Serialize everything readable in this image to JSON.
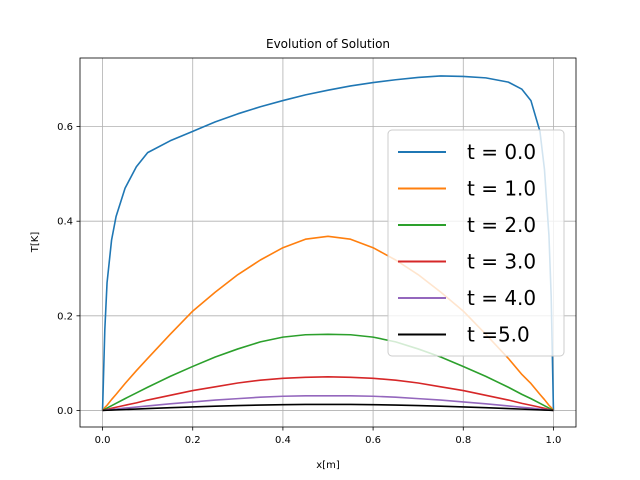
{
  "chart_data": {
    "type": "line",
    "title": "Evolution of Solution",
    "xlabel": "x[m]",
    "ylabel": "T[K]",
    "xlim": [
      -0.05,
      1.05
    ],
    "ylim": [
      -0.035,
      0.745
    ],
    "xticks": [
      0.0,
      0.2,
      0.4,
      0.6,
      0.8,
      1.0
    ],
    "xtick_labels": [
      "0.0",
      "0.2",
      "0.4",
      "0.6",
      "0.8",
      "1.0"
    ],
    "yticks": [
      0.0,
      0.2,
      0.4,
      0.6
    ],
    "ytick_labels": [
      "0.0",
      "0.2",
      "0.4",
      "0.6"
    ],
    "grid": true,
    "legend_position": "right",
    "x": [
      0.0,
      0.005,
      0.01,
      0.02,
      0.03,
      0.05,
      0.075,
      0.1,
      0.15,
      0.2,
      0.25,
      0.3,
      0.35,
      0.4,
      0.45,
      0.5,
      0.55,
      0.6,
      0.65,
      0.7,
      0.75,
      0.8,
      0.85,
      0.9,
      0.93,
      0.95,
      0.97,
      0.98,
      0.99,
      0.995,
      1.0
    ],
    "series": [
      {
        "name": "t = 0.0",
        "color": "#1f77b4",
        "values": [
          0.0,
          0.17,
          0.27,
          0.36,
          0.41,
          0.47,
          0.515,
          0.545,
          0.57,
          0.59,
          0.61,
          0.627,
          0.642,
          0.655,
          0.667,
          0.677,
          0.686,
          0.693,
          0.699,
          0.704,
          0.707,
          0.706,
          0.703,
          0.694,
          0.679,
          0.655,
          0.59,
          0.51,
          0.37,
          0.24,
          0.0
        ]
      },
      {
        "name": "t = 1.0",
        "color": "#ff7f0e",
        "values": [
          0.0,
          0.006,
          0.011,
          0.023,
          0.034,
          0.057,
          0.084,
          0.11,
          0.161,
          0.21,
          0.25,
          0.287,
          0.318,
          0.344,
          0.362,
          0.368,
          0.362,
          0.344,
          0.318,
          0.287,
          0.25,
          0.21,
          0.161,
          0.11,
          0.076,
          0.057,
          0.034,
          0.023,
          0.011,
          0.006,
          0.0
        ]
      },
      {
        "name": "t = 2.0",
        "color": "#2ca02c",
        "values": [
          0.0,
          0.0025,
          0.005,
          0.01,
          0.015,
          0.025,
          0.037,
          0.049,
          0.072,
          0.093,
          0.113,
          0.13,
          0.145,
          0.155,
          0.16,
          0.161,
          0.16,
          0.155,
          0.145,
          0.13,
          0.113,
          0.093,
          0.072,
          0.049,
          0.034,
          0.025,
          0.015,
          0.01,
          0.005,
          0.0025,
          0.0
        ]
      },
      {
        "name": "t = 3.0",
        "color": "#d62728",
        "values": [
          0.0,
          0.001,
          0.002,
          0.0045,
          0.0067,
          0.011,
          0.016,
          0.022,
          0.032,
          0.042,
          0.05,
          0.058,
          0.064,
          0.068,
          0.07,
          0.071,
          0.07,
          0.068,
          0.064,
          0.058,
          0.05,
          0.042,
          0.032,
          0.022,
          0.015,
          0.011,
          0.0067,
          0.0045,
          0.002,
          0.001,
          0.0
        ]
      },
      {
        "name": "t = 4.0",
        "color": "#9467bd",
        "values": [
          0.0,
          0.0005,
          0.001,
          0.002,
          0.003,
          0.005,
          0.0072,
          0.0095,
          0.014,
          0.018,
          0.022,
          0.025,
          0.028,
          0.03,
          0.031,
          0.031,
          0.031,
          0.03,
          0.028,
          0.025,
          0.022,
          0.018,
          0.014,
          0.0095,
          0.0066,
          0.005,
          0.003,
          0.002,
          0.001,
          0.0005,
          0.0
        ]
      },
      {
        "name": "t =5.0",
        "color": "#000000",
        "values": [
          0.0,
          0.0002,
          0.0004,
          0.0008,
          0.0012,
          0.002,
          0.003,
          0.004,
          0.0058,
          0.0075,
          0.009,
          0.0103,
          0.0114,
          0.0122,
          0.0126,
          0.0127,
          0.0126,
          0.0122,
          0.0114,
          0.0103,
          0.009,
          0.0075,
          0.0058,
          0.004,
          0.0028,
          0.002,
          0.0012,
          0.0008,
          0.0004,
          0.0002,
          0.0
        ]
      }
    ]
  }
}
